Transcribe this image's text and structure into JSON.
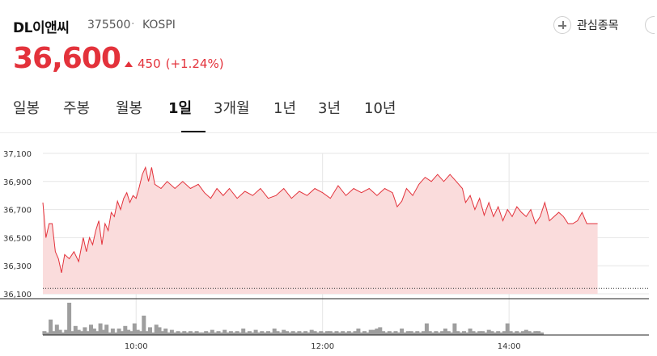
{
  "stock": {
    "name": "DL이앤씨",
    "code": "375500",
    "separator": "·",
    "market": "KOSPI",
    "watch_label": "관심종목",
    "price": "36,600",
    "change": "450",
    "change_pct": "(+1.24%)",
    "up_color": "#e3323b"
  },
  "tabs": [
    {
      "label": "일봉",
      "active": false
    },
    {
      "label": "주봉",
      "active": false
    },
    {
      "label": "월봉",
      "active": false
    },
    {
      "label": "1일",
      "active": true
    },
    {
      "label": "3개월",
      "active": false
    },
    {
      "label": "1년",
      "active": false
    },
    {
      "label": "3년",
      "active": false
    },
    {
      "label": "10년",
      "active": false
    }
  ],
  "chart_data": {
    "type": "area",
    "ylim": [
      36100,
      37100
    ],
    "yticks": [
      "37,100",
      "36,900",
      "36,700",
      "36,500",
      "36,300",
      "36,100"
    ],
    "xticks": [
      "10:00",
      "12:00",
      "14:00"
    ],
    "line_color": "#e3323b",
    "fill_color": "#fadcdc",
    "previous_close": 36150,
    "price_series": [
      [
        0,
        36750
      ],
      [
        2,
        36500
      ],
      [
        4,
        36600
      ],
      [
        6,
        36600
      ],
      [
        8,
        36400
      ],
      [
        10,
        36350
      ],
      [
        12,
        36250
      ],
      [
        14,
        36380
      ],
      [
        17,
        36350
      ],
      [
        20,
        36400
      ],
      [
        23,
        36330
      ],
      [
        26,
        36500
      ],
      [
        28,
        36400
      ],
      [
        30,
        36500
      ],
      [
        32,
        36450
      ],
      [
        34,
        36550
      ],
      [
        36,
        36620
      ],
      [
        38,
        36450
      ],
      [
        40,
        36600
      ],
      [
        42,
        36550
      ],
      [
        44,
        36680
      ],
      [
        46,
        36650
      ],
      [
        48,
        36760
      ],
      [
        50,
        36700
      ],
      [
        52,
        36780
      ],
      [
        54,
        36820
      ],
      [
        56,
        36750
      ],
      [
        58,
        36800
      ],
      [
        60,
        36780
      ],
      [
        62,
        36860
      ],
      [
        64,
        36950
      ],
      [
        66,
        37000
      ],
      [
        68,
        36900
      ],
      [
        70,
        37000
      ],
      [
        72,
        36880
      ],
      [
        76,
        36850
      ],
      [
        80,
        36900
      ],
      [
        85,
        36850
      ],
      [
        90,
        36900
      ],
      [
        95,
        36850
      ],
      [
        100,
        36880
      ],
      [
        104,
        36820
      ],
      [
        108,
        36780
      ],
      [
        112,
        36850
      ],
      [
        116,
        36800
      ],
      [
        120,
        36850
      ],
      [
        125,
        36780
      ],
      [
        130,
        36830
      ],
      [
        135,
        36800
      ],
      [
        140,
        36850
      ],
      [
        145,
        36780
      ],
      [
        150,
        36800
      ],
      [
        155,
        36850
      ],
      [
        160,
        36780
      ],
      [
        165,
        36830
      ],
      [
        170,
        36800
      ],
      [
        175,
        36850
      ],
      [
        180,
        36820
      ],
      [
        185,
        36780
      ],
      [
        190,
        36870
      ],
      [
        195,
        36800
      ],
      [
        200,
        36850
      ],
      [
        205,
        36820
      ],
      [
        210,
        36850
      ],
      [
        215,
        36800
      ],
      [
        220,
        36850
      ],
      [
        225,
        36820
      ],
      [
        228,
        36720
      ],
      [
        231,
        36760
      ],
      [
        234,
        36850
      ],
      [
        238,
        36800
      ],
      [
        242,
        36880
      ],
      [
        246,
        36930
      ],
      [
        250,
        36900
      ],
      [
        254,
        36950
      ],
      [
        258,
        36900
      ],
      [
        262,
        36950
      ],
      [
        266,
        36900
      ],
      [
        270,
        36850
      ],
      [
        272,
        36750
      ],
      [
        275,
        36800
      ],
      [
        278,
        36700
      ],
      [
        281,
        36780
      ],
      [
        284,
        36660
      ],
      [
        287,
        36750
      ],
      [
        290,
        36650
      ],
      [
        293,
        36720
      ],
      [
        296,
        36620
      ],
      [
        299,
        36700
      ],
      [
        302,
        36650
      ],
      [
        305,
        36720
      ],
      [
        308,
        36680
      ],
      [
        311,
        36650
      ],
      [
        314,
        36700
      ],
      [
        317,
        36600
      ],
      [
        320,
        36650
      ],
      [
        323,
        36750
      ],
      [
        326,
        36620
      ],
      [
        329,
        36650
      ],
      [
        332,
        36680
      ],
      [
        335,
        36650
      ],
      [
        338,
        36600
      ],
      [
        341,
        36600
      ],
      [
        344,
        36620
      ],
      [
        347,
        36680
      ],
      [
        350,
        36600
      ],
      [
        354,
        36600
      ],
      [
        357,
        36600
      ]
    ],
    "volume_series": [
      [
        1,
        3
      ],
      [
        3,
        2
      ],
      [
        5,
        12
      ],
      [
        7,
        3
      ],
      [
        9,
        8
      ],
      [
        11,
        4
      ],
      [
        13,
        2
      ],
      [
        15,
        4
      ],
      [
        17,
        25
      ],
      [
        19,
        3
      ],
      [
        21,
        7
      ],
      [
        23,
        4
      ],
      [
        25,
        3
      ],
      [
        27,
        6
      ],
      [
        29,
        3
      ],
      [
        31,
        8
      ],
      [
        33,
        5
      ],
      [
        35,
        3
      ],
      [
        37,
        9
      ],
      [
        39,
        4
      ],
      [
        41,
        8
      ],
      [
        43,
        2
      ],
      [
        45,
        5
      ],
      [
        47,
        2
      ],
      [
        49,
        5
      ],
      [
        51,
        3
      ],
      [
        53,
        7
      ],
      [
        55,
        4
      ],
      [
        57,
        3
      ],
      [
        59,
        9
      ],
      [
        61,
        4
      ],
      [
        63,
        3
      ],
      [
        65,
        15
      ],
      [
        67,
        3
      ],
      [
        69,
        6
      ],
      [
        71,
        2
      ],
      [
        73,
        8
      ],
      [
        75,
        6
      ],
      [
        77,
        3
      ],
      [
        79,
        5
      ],
      [
        81,
        2
      ],
      [
        83,
        4
      ],
      [
        85,
        2
      ],
      [
        87,
        3
      ],
      [
        89,
        2
      ],
      [
        91,
        3
      ],
      [
        93,
        2
      ],
      [
        95,
        3
      ],
      [
        97,
        2
      ],
      [
        99,
        3
      ],
      [
        101,
        2
      ],
      [
        103,
        2
      ],
      [
        105,
        3
      ],
      [
        107,
        2
      ],
      [
        109,
        4
      ],
      [
        111,
        2
      ],
      [
        113,
        3
      ],
      [
        115,
        2
      ],
      [
        117,
        4
      ],
      [
        119,
        2
      ],
      [
        121,
        3
      ],
      [
        123,
        2
      ],
      [
        125,
        3
      ],
      [
        127,
        2
      ],
      [
        129,
        5
      ],
      [
        131,
        2
      ],
      [
        133,
        3
      ],
      [
        135,
        2
      ],
      [
        137,
        4
      ],
      [
        139,
        2
      ],
      [
        141,
        3
      ],
      [
        143,
        2
      ],
      [
        145,
        3
      ],
      [
        147,
        2
      ],
      [
        149,
        5
      ],
      [
        151,
        3
      ],
      [
        153,
        2
      ],
      [
        155,
        4
      ],
      [
        157,
        3
      ],
      [
        159,
        2
      ],
      [
        161,
        3
      ],
      [
        163,
        2
      ],
      [
        165,
        3
      ],
      [
        167,
        2
      ],
      [
        169,
        3
      ],
      [
        171,
        2
      ],
      [
        173,
        4
      ],
      [
        175,
        3
      ],
      [
        177,
        2
      ],
      [
        179,
        3
      ],
      [
        181,
        2
      ],
      [
        183,
        3
      ],
      [
        185,
        3
      ],
      [
        187,
        2
      ],
      [
        189,
        3
      ],
      [
        191,
        2
      ],
      [
        193,
        3
      ],
      [
        195,
        2
      ],
      [
        197,
        3
      ],
      [
        199,
        2
      ],
      [
        201,
        3
      ],
      [
        203,
        5
      ],
      [
        205,
        2
      ],
      [
        207,
        3
      ],
      [
        209,
        2
      ],
      [
        211,
        4
      ],
      [
        213,
        4
      ],
      [
        215,
        5
      ],
      [
        217,
        6
      ],
      [
        219,
        3
      ],
      [
        221,
        2
      ],
      [
        223,
        3
      ],
      [
        225,
        2
      ],
      [
        227,
        3
      ],
      [
        229,
        2
      ],
      [
        231,
        5
      ],
      [
        233,
        2
      ],
      [
        235,
        3
      ],
      [
        237,
        3
      ],
      [
        239,
        2
      ],
      [
        241,
        3
      ],
      [
        243,
        2
      ],
      [
        245,
        3
      ],
      [
        247,
        9
      ],
      [
        249,
        3
      ],
      [
        251,
        2
      ],
      [
        253,
        3
      ],
      [
        255,
        2
      ],
      [
        257,
        3
      ],
      [
        259,
        5
      ],
      [
        261,
        3
      ],
      [
        263,
        2
      ],
      [
        265,
        9
      ],
      [
        267,
        3
      ],
      [
        269,
        2
      ],
      [
        271,
        3
      ],
      [
        273,
        2
      ],
      [
        275,
        5
      ],
      [
        277,
        3
      ],
      [
        279,
        2
      ],
      [
        281,
        3
      ],
      [
        283,
        3
      ],
      [
        285,
        2
      ],
      [
        287,
        4
      ],
      [
        289,
        3
      ],
      [
        291,
        2
      ],
      [
        293,
        3
      ],
      [
        295,
        2
      ],
      [
        297,
        3
      ],
      [
        299,
        9
      ],
      [
        301,
        3
      ],
      [
        303,
        2
      ],
      [
        305,
        3
      ],
      [
        307,
        2
      ],
      [
        309,
        3
      ],
      [
        311,
        4
      ],
      [
        313,
        3
      ],
      [
        315,
        2
      ],
      [
        317,
        3
      ],
      [
        319,
        3
      ],
      [
        321,
        2
      ]
    ]
  }
}
